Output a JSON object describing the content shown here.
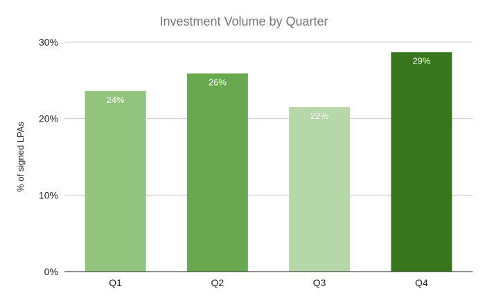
{
  "chart_data": {
    "type": "bar",
    "title": "Investment Volume by Quarter",
    "xlabel": "",
    "ylabel": "% of signed LPAs",
    "categories": [
      "Q1",
      "Q2",
      "Q3",
      "Q4"
    ],
    "values": [
      23.6,
      25.9,
      21.5,
      28.7
    ],
    "data_labels": [
      "24%",
      "26%",
      "22%",
      "29%"
    ],
    "bar_colors": [
      "#93c47d",
      "#6aa84f",
      "#b6d7a8",
      "#38761d"
    ],
    "ylim": [
      0,
      30
    ],
    "yticks": [
      0,
      10,
      20,
      30
    ],
    "ytick_labels": [
      "0%",
      "10%",
      "20%",
      "30%"
    ],
    "grid": true,
    "legend": "none"
  }
}
